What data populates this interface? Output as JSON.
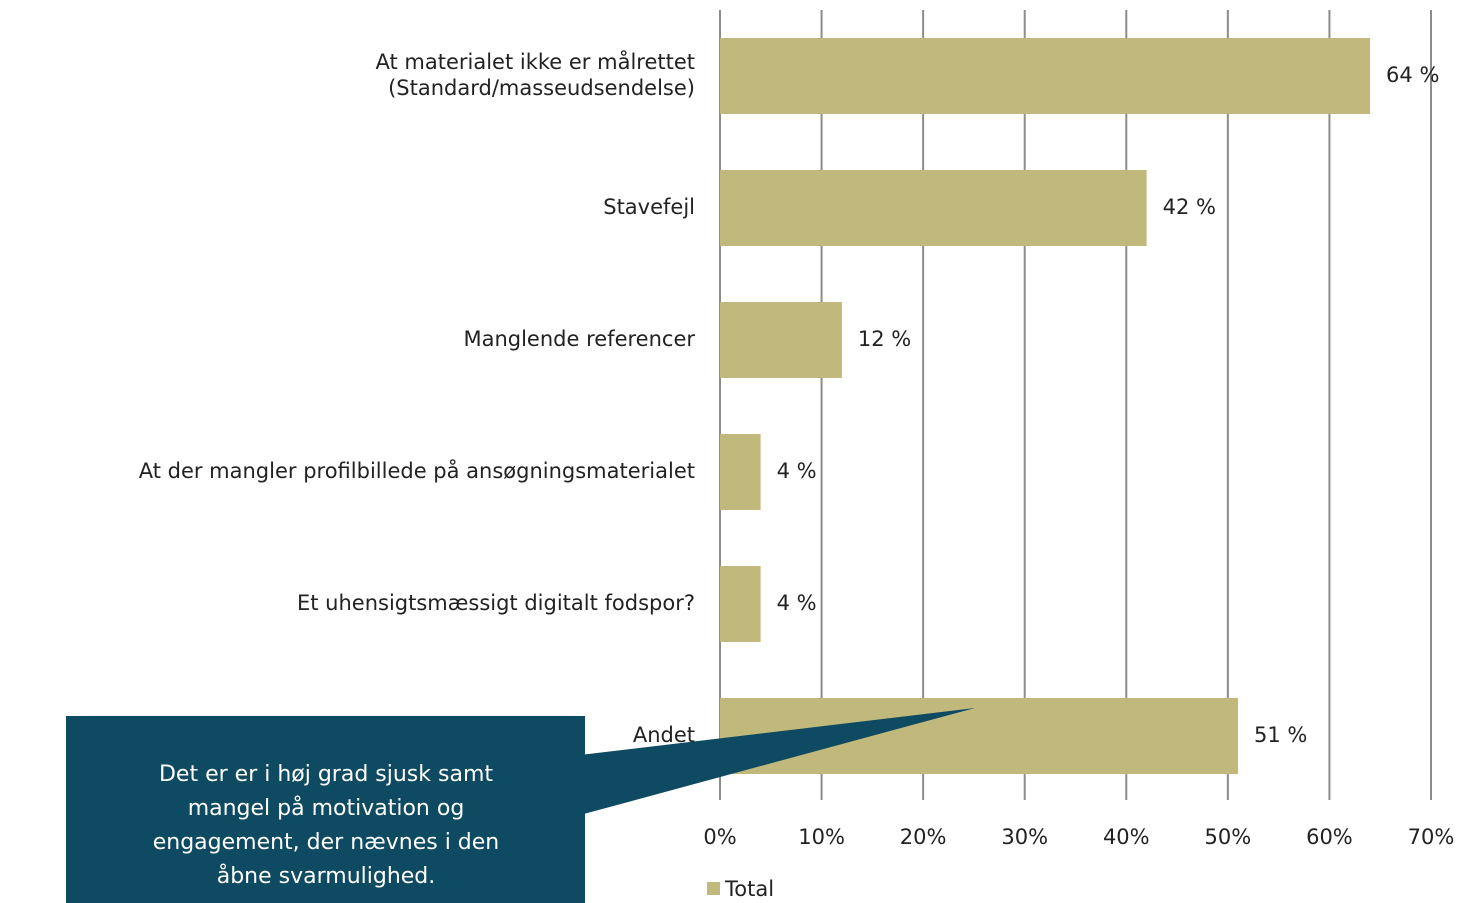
{
  "chart_data": {
    "type": "hbar",
    "categories": [
      "At materialet ikke er målrettet\n(Standard/masseudsendelse)",
      "Stavefejl",
      "Manglende referencer",
      "At der mangler profilbillede på ansøgningsmaterialet",
      "Et uhensigtsmæssigt digitalt fodspor?",
      "Andet"
    ],
    "series": [
      {
        "name": "Total",
        "color": "#c0b97b",
        "values": [
          64,
          42,
          12,
          4,
          4,
          51
        ],
        "value_labels": [
          "64 %",
          "42 %",
          "12 %",
          "4 %",
          "4 %",
          "51 %"
        ]
      }
    ],
    "xlim": [
      0,
      70
    ],
    "xticks": [
      {
        "value": 0,
        "label": "0%"
      },
      {
        "value": 10,
        "label": "10%"
      },
      {
        "value": 20,
        "label": "20%"
      },
      {
        "value": 30,
        "label": "30%"
      },
      {
        "value": 40,
        "label": "40%"
      },
      {
        "value": 50,
        "label": "50%"
      },
      {
        "value": 60,
        "label": "60%"
      },
      {
        "value": 70,
        "label": "70%"
      }
    ],
    "grid": true,
    "legend": "bottom",
    "annotation": [
      "Det er er i høj grad sjusk samt",
      "mangel på motivation og",
      "engagement, der nævnes i den",
      "åbne svarmulighed."
    ]
  }
}
